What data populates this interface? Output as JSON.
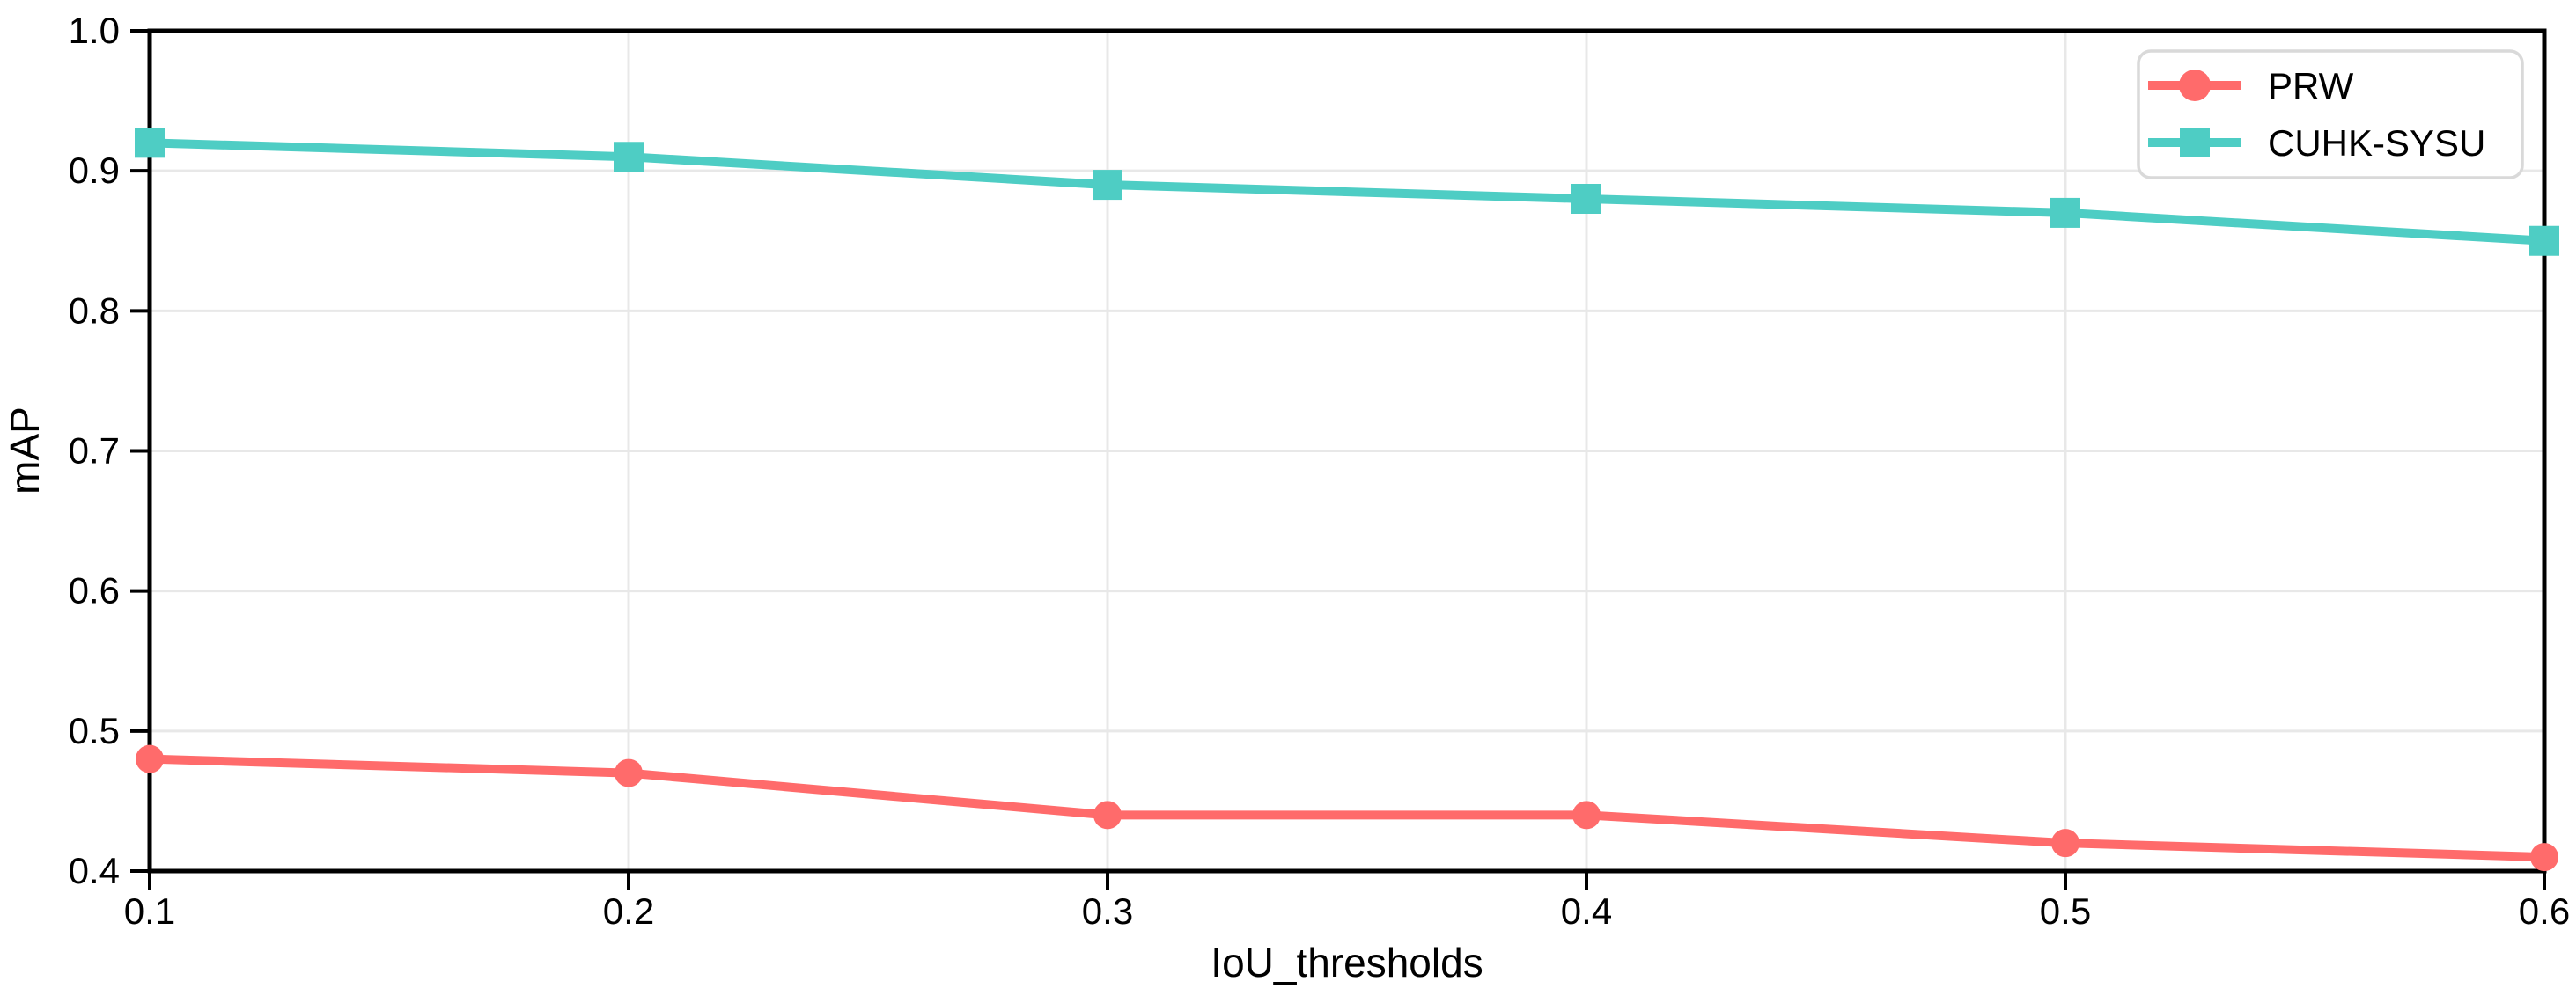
{
  "figure": {
    "background": "#ffffff"
  },
  "chart_data": {
    "type": "line",
    "xlabel": "IoU_thresholds",
    "ylabel": "mAP",
    "x": [
      0.1,
      0.2,
      0.3,
      0.4,
      0.5,
      0.6
    ],
    "xticks": [
      "0.1",
      "0.2",
      "0.3",
      "0.4",
      "0.5",
      "0.6"
    ],
    "yticks": [
      "0.4",
      "0.5",
      "0.6",
      "0.7",
      "0.8",
      "0.9",
      "1.0"
    ],
    "xlim": [
      0.1,
      0.6
    ],
    "ylim": [
      0.4,
      1.0
    ],
    "grid": true,
    "grid_color": "#e8e8e8",
    "axis_color": "#000000",
    "legend_position": "upper right",
    "legend_border_color": "#d9d9d9",
    "legend_background": "#ffffff",
    "series": [
      {
        "name": "PRW",
        "color": "#ff6b6b",
        "marker": "circle",
        "values": [
          0.48,
          0.47,
          0.44,
          0.44,
          0.42,
          0.41
        ]
      },
      {
        "name": "CUHK-SYSU",
        "color": "#4ecdc4",
        "marker": "square",
        "values": [
          0.92,
          0.91,
          0.89,
          0.88,
          0.87,
          0.85
        ]
      }
    ]
  }
}
